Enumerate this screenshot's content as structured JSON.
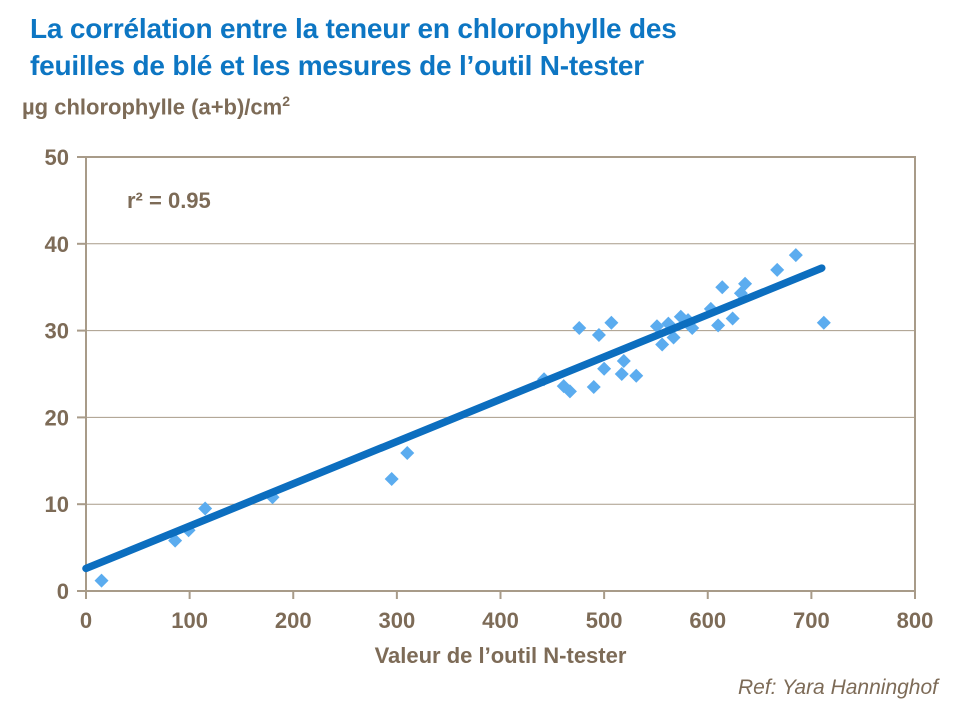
{
  "title": {
    "lines": [
      "La corrélation entre la teneur en chlorophylle des",
      "feuilles de blé et les mesures de l’outil N-tester"
    ]
  },
  "y_unit": {
    "text": "µg chlorophylle (a+b)/cm",
    "sup": "2"
  },
  "annotation": "r² = 0.95",
  "x_title": "Valeur de l’outil N-tester",
  "ref": "Ref: Yara Hanninghof",
  "colors": {
    "title": "#0d76c3",
    "text_brown": "#7d6b57",
    "grid": "#a89b89",
    "point_fill": "#5bacef",
    "trendline": "#0c6ebf"
  },
  "chart_data": {
    "type": "scatter",
    "title": "La corrélation entre la teneur en chlorophylle des feuilles de blé et les mesures de l’outil N-tester",
    "xlabel": "Valeur de l’outil N-tester",
    "ylabel": "µg chlorophylle (a+b)/cm²",
    "xlim": [
      0,
      800
    ],
    "ylim": [
      0,
      50
    ],
    "x_ticks": [
      0,
      100,
      200,
      300,
      400,
      500,
      600,
      700,
      800
    ],
    "y_ticks": [
      0,
      10,
      20,
      30,
      40,
      50
    ],
    "grid": "horizontal",
    "legend": "none",
    "r_squared": 0.95,
    "points": [
      [
        15,
        1.2
      ],
      [
        86,
        5.8
      ],
      [
        99,
        7.0
      ],
      [
        115,
        9.5
      ],
      [
        180,
        10.8
      ],
      [
        295,
        12.9
      ],
      [
        310,
        15.9
      ],
      [
        442,
        24.4
      ],
      [
        461,
        23.6
      ],
      [
        467,
        23.0
      ],
      [
        476,
        30.3
      ],
      [
        490,
        23.5
      ],
      [
        495,
        29.5
      ],
      [
        500,
        25.6
      ],
      [
        507,
        30.9
      ],
      [
        517,
        25.0
      ],
      [
        519,
        26.5
      ],
      [
        531,
        24.8
      ],
      [
        551,
        30.5
      ],
      [
        556,
        28.4
      ],
      [
        562,
        30.8
      ],
      [
        567,
        29.2
      ],
      [
        574,
        31.6
      ],
      [
        581,
        31.2
      ],
      [
        585,
        30.3
      ],
      [
        603,
        32.5
      ],
      [
        610,
        30.6
      ],
      [
        614,
        35.0
      ],
      [
        624,
        31.4
      ],
      [
        632,
        34.3
      ],
      [
        636,
        35.4
      ],
      [
        667,
        37.0
      ],
      [
        685,
        38.7
      ],
      [
        712,
        30.9
      ]
    ],
    "trendline": {
      "x1": 0,
      "y1": 2.6,
      "x2": 710,
      "y2": 37.2
    }
  }
}
